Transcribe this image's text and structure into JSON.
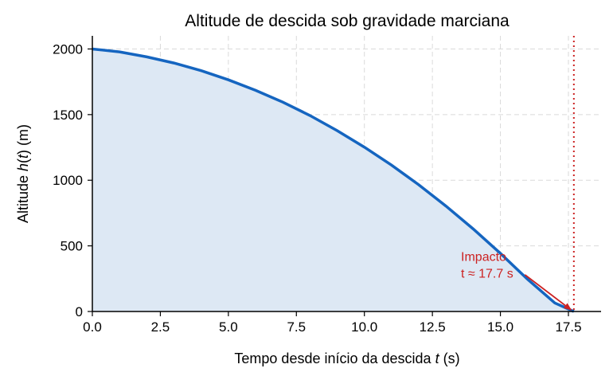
{
  "chart_data": {
    "type": "area",
    "title": "Altitude de descida sob gravidade marciana",
    "xlabel": {
      "prefix": "Tempo desde início da descida ",
      "var": "t",
      "suffix": " (s)"
    },
    "ylabel": {
      "prefix": "Altitude ",
      "var": "h",
      "mid": "(",
      "arg": "t",
      "end": ")",
      "suffix": " (m)"
    },
    "xlim": [
      0,
      18.7
    ],
    "ylim": [
      0,
      2100
    ],
    "xticks": [
      0,
      2.5,
      5,
      7.5,
      10,
      12.5,
      15,
      17.5
    ],
    "xtick_labels": [
      "0.0",
      "2.5",
      "5.0",
      "7.5",
      "10.0",
      "12.5",
      "15.0",
      "17.5"
    ],
    "yticks": [
      0,
      500,
      1000,
      1500,
      2000
    ],
    "ytick_labels": [
      "0",
      "500",
      "1000",
      "1500",
      "2000"
    ],
    "grid": true,
    "series": [
      {
        "x": [
          0,
          1,
          2,
          3,
          4,
          5,
          6,
          7,
          8,
          9,
          10,
          11,
          12,
          13,
          14,
          15,
          16,
          17,
          17.7
        ],
        "y": [
          2000,
          1978,
          1940,
          1893,
          1835,
          1765,
          1685,
          1595,
          1493,
          1378,
          1252,
          1115,
          965,
          803,
          629,
          443,
          245,
          65,
          0
        ],
        "color": "#1565c0",
        "fill": "#dde8f4"
      }
    ],
    "impact_line": {
      "x": 17.7,
      "color": "#cc2222"
    },
    "annotation": {
      "line1": "Impacto",
      "line2": "t ≈ 17.7 s",
      "text_x": 13.55,
      "text_y": 410,
      "arrow_from": [
        15.9,
        280
      ],
      "arrow_to": [
        17.6,
        0
      ]
    }
  }
}
